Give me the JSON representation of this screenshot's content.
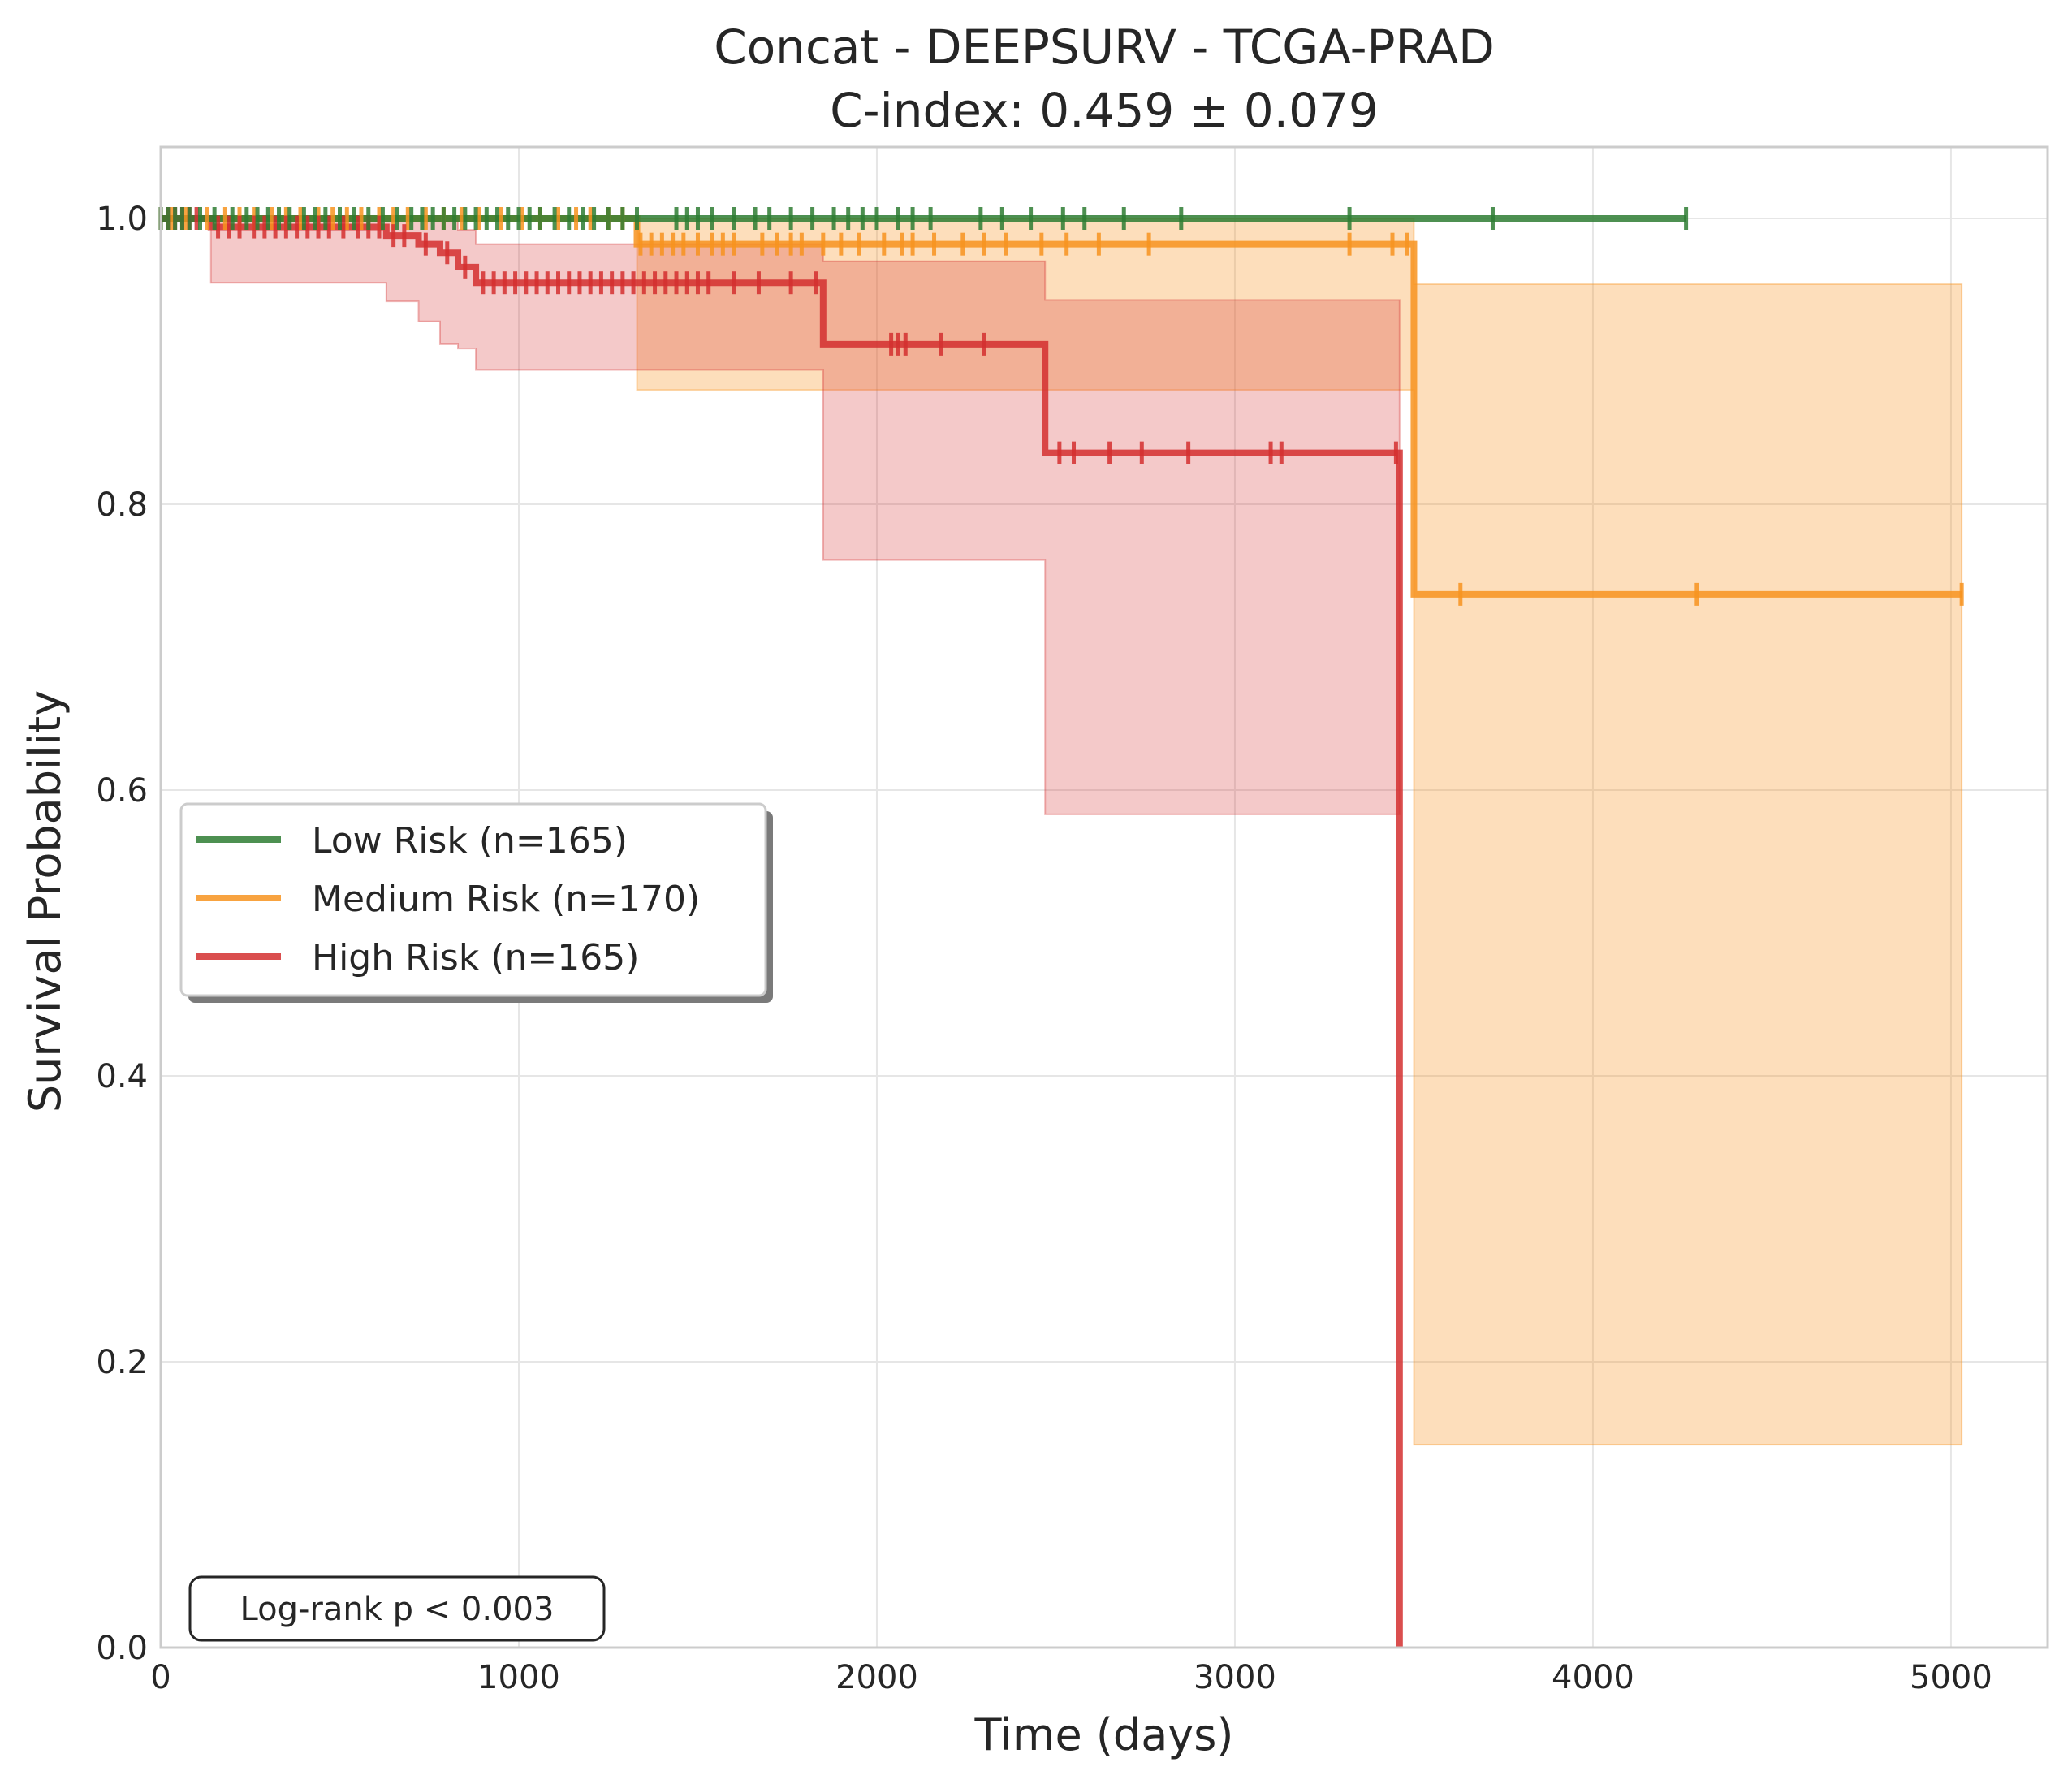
{
  "chart_data": {
    "type": "line",
    "subtype": "kaplan-meier",
    "title": "Concat - DEEPSURV - TCGA-PRAD",
    "subtitle": "C-index: 0.459 ± 0.079",
    "xlabel": "Time (days)",
    "ylabel": "Survival Probability",
    "xlim": [
      0,
      5270
    ],
    "ylim": [
      0,
      1.05
    ],
    "xticks": [
      0,
      1000,
      2000,
      3000,
      4000,
      5000
    ],
    "xtick_labels": [
      "0",
      "1000",
      "2000",
      "3000",
      "4000",
      "5000"
    ],
    "yticks": [
      0.0,
      0.2,
      0.4,
      0.6,
      0.8,
      1.0
    ],
    "ytick_labels": [
      "0.0",
      "0.2",
      "0.4",
      "0.6",
      "0.8",
      "1.0"
    ],
    "grid": true,
    "legend_position": "center-left",
    "annotation": "Log-rank p < 0.003",
    "series": [
      {
        "name": "Low Risk (n=165)",
        "color": "#2e7d32",
        "step_x": [
          0,
          4260
        ],
        "step_y": [
          1.0,
          1.0
        ],
        "ci": [],
        "censors": [
          [
            0,
            1.0
          ],
          [
            20,
            1.0
          ],
          [
            40,
            1.0
          ],
          [
            60,
            1.0
          ],
          [
            80,
            1.0
          ],
          [
            110,
            1.0
          ],
          [
            150,
            1.0
          ],
          [
            200,
            1.0
          ],
          [
            240,
            1.0
          ],
          [
            270,
            1.0
          ],
          [
            300,
            1.0
          ],
          [
            330,
            1.0
          ],
          [
            360,
            1.0
          ],
          [
            400,
            1.0
          ],
          [
            430,
            1.0
          ],
          [
            460,
            1.0
          ],
          [
            500,
            1.0
          ],
          [
            540,
            1.0
          ],
          [
            580,
            1.0
          ],
          [
            620,
            1.0
          ],
          [
            660,
            1.0
          ],
          [
            700,
            1.0
          ],
          [
            730,
            1.0
          ],
          [
            760,
            1.0
          ],
          [
            790,
            1.0
          ],
          [
            820,
            1.0
          ],
          [
            850,
            1.0
          ],
          [
            880,
            1.0
          ],
          [
            910,
            1.0
          ],
          [
            940,
            1.0
          ],
          [
            970,
            1.0
          ],
          [
            1000,
            1.0
          ],
          [
            1030,
            1.0
          ],
          [
            1060,
            1.0
          ],
          [
            1100,
            1.0
          ],
          [
            1140,
            1.0
          ],
          [
            1180,
            1.0
          ],
          [
            1210,
            1.0
          ],
          [
            1250,
            1.0
          ],
          [
            1290,
            1.0
          ],
          [
            1330,
            1.0
          ],
          [
            1440,
            1.0
          ],
          [
            1470,
            1.0
          ],
          [
            1500,
            1.0
          ],
          [
            1540,
            1.0
          ],
          [
            1600,
            1.0
          ],
          [
            1660,
            1.0
          ],
          [
            1700,
            1.0
          ],
          [
            1760,
            1.0
          ],
          [
            1820,
            1.0
          ],
          [
            1880,
            1.0
          ],
          [
            1920,
            1.0
          ],
          [
            1960,
            1.0
          ],
          [
            2000,
            1.0
          ],
          [
            2060,
            1.0
          ],
          [
            2100,
            1.0
          ],
          [
            2150,
            1.0
          ],
          [
            2290,
            1.0
          ],
          [
            2350,
            1.0
          ],
          [
            2430,
            1.0
          ],
          [
            2520,
            1.0
          ],
          [
            2580,
            1.0
          ],
          [
            2690,
            1.0
          ],
          [
            2850,
            1.0
          ],
          [
            3320,
            1.0
          ],
          [
            3720,
            1.0
          ],
          [
            4260,
            1.0
          ]
        ]
      },
      {
        "name": "Medium Risk (n=170)",
        "color": "#f7931e",
        "step_x": [
          0,
          1330,
          3500,
          5030
        ],
        "step_y": [
          1.0,
          0.982,
          0.737,
          0.737
        ],
        "ci": [
          [
            0,
            1.0,
            1.0
          ],
          [
            1330,
            0.88,
            1.0
          ],
          [
            3500,
            0.142,
            0.954
          ],
          [
            5030,
            0.142,
            0.954
          ]
        ],
        "censors": [
          [
            0,
            1.0
          ],
          [
            30,
            1.0
          ],
          [
            70,
            1.0
          ],
          [
            130,
            1.0
          ],
          [
            180,
            1.0
          ],
          [
            220,
            1.0
          ],
          [
            260,
            1.0
          ],
          [
            310,
            1.0
          ],
          [
            350,
            1.0
          ],
          [
            390,
            1.0
          ],
          [
            440,
            1.0
          ],
          [
            480,
            1.0
          ],
          [
            520,
            1.0
          ],
          [
            560,
            1.0
          ],
          [
            610,
            1.0
          ],
          [
            650,
            1.0
          ],
          [
            690,
            1.0
          ],
          [
            740,
            1.0
          ],
          [
            790,
            1.0
          ],
          [
            840,
            1.0
          ],
          [
            890,
            1.0
          ],
          [
            950,
            1.0
          ],
          [
            1010,
            1.0
          ],
          [
            1060,
            1.0
          ],
          [
            1110,
            1.0
          ],
          [
            1160,
            1.0
          ],
          [
            1200,
            1.0
          ],
          [
            1250,
            1.0
          ],
          [
            1290,
            1.0
          ],
          [
            1340,
            0.982
          ],
          [
            1370,
            0.982
          ],
          [
            1400,
            0.982
          ],
          [
            1430,
            0.982
          ],
          [
            1460,
            0.982
          ],
          [
            1500,
            0.982
          ],
          [
            1540,
            0.982
          ],
          [
            1570,
            0.982
          ],
          [
            1600,
            0.982
          ],
          [
            1680,
            0.982
          ],
          [
            1720,
            0.982
          ],
          [
            1760,
            0.982
          ],
          [
            1790,
            0.982
          ],
          [
            1850,
            0.982
          ],
          [
            1900,
            0.982
          ],
          [
            1950,
            0.982
          ],
          [
            2020,
            0.982
          ],
          [
            2070,
            0.982
          ],
          [
            2100,
            0.982
          ],
          [
            2160,
            0.982
          ],
          [
            2240,
            0.982
          ],
          [
            2300,
            0.982
          ],
          [
            2360,
            0.982
          ],
          [
            2460,
            0.982
          ],
          [
            2530,
            0.982
          ],
          [
            2620,
            0.982
          ],
          [
            2760,
            0.982
          ],
          [
            3320,
            0.982
          ],
          [
            3440,
            0.982
          ],
          [
            3480,
            0.982
          ],
          [
            3630,
            0.737
          ],
          [
            4290,
            0.737
          ],
          [
            5030,
            0.737
          ]
        ]
      },
      {
        "name": "High Risk (n=165)",
        "color": "#d32f2f",
        "step_x": [
          0,
          140,
          630,
          720,
          780,
          830,
          880,
          1850,
          2470,
          3460,
          3460
        ],
        "step_y": [
          1.0,
          0.994,
          0.988,
          0.982,
          0.976,
          0.966,
          0.955,
          0.912,
          0.836,
          0.836,
          0.0
        ],
        "ci": [
          [
            0,
            1.0,
            1.0
          ],
          [
            140,
            0.955,
            1.0
          ],
          [
            630,
            0.942,
            1.0
          ],
          [
            720,
            0.928,
            1.0
          ],
          [
            780,
            0.912,
            1.0
          ],
          [
            830,
            0.909,
            0.992
          ],
          [
            880,
            0.894,
            0.982
          ],
          [
            1850,
            0.761,
            0.97
          ],
          [
            2470,
            0.583,
            0.943
          ],
          [
            3460,
            0.583,
            0.943
          ]
        ],
        "censors": [
          [
            0,
            1.0
          ],
          [
            20,
            1.0
          ],
          [
            40,
            1.0
          ],
          [
            60,
            1.0
          ],
          [
            80,
            1.0
          ],
          [
            100,
            1.0
          ],
          [
            160,
            0.994
          ],
          [
            190,
            0.994
          ],
          [
            220,
            0.994
          ],
          [
            260,
            0.994
          ],
          [
            290,
            0.994
          ],
          [
            320,
            0.994
          ],
          [
            350,
            0.994
          ],
          [
            380,
            0.994
          ],
          [
            410,
            0.994
          ],
          [
            440,
            0.994
          ],
          [
            470,
            0.994
          ],
          [
            510,
            0.994
          ],
          [
            550,
            0.994
          ],
          [
            580,
            0.994
          ],
          [
            610,
            0.994
          ],
          [
            650,
            0.988
          ],
          [
            680,
            0.988
          ],
          [
            740,
            0.982
          ],
          [
            800,
            0.976
          ],
          [
            850,
            0.966
          ],
          [
            900,
            0.955
          ],
          [
            930,
            0.955
          ],
          [
            960,
            0.955
          ],
          [
            990,
            0.955
          ],
          [
            1020,
            0.955
          ],
          [
            1050,
            0.955
          ],
          [
            1080,
            0.955
          ],
          [
            1110,
            0.955
          ],
          [
            1140,
            0.955
          ],
          [
            1170,
            0.955
          ],
          [
            1200,
            0.955
          ],
          [
            1230,
            0.955
          ],
          [
            1260,
            0.955
          ],
          [
            1290,
            0.955
          ],
          [
            1320,
            0.955
          ],
          [
            1350,
            0.955
          ],
          [
            1380,
            0.955
          ],
          [
            1410,
            0.955
          ],
          [
            1440,
            0.955
          ],
          [
            1470,
            0.955
          ],
          [
            1500,
            0.955
          ],
          [
            1530,
            0.955
          ],
          [
            1600,
            0.955
          ],
          [
            1670,
            0.955
          ],
          [
            1760,
            0.955
          ],
          [
            1830,
            0.955
          ],
          [
            2040,
            0.912
          ],
          [
            2060,
            0.912
          ],
          [
            2080,
            0.912
          ],
          [
            2180,
            0.912
          ],
          [
            2300,
            0.912
          ],
          [
            2510,
            0.836
          ],
          [
            2550,
            0.836
          ],
          [
            2650,
            0.836
          ],
          [
            2740,
            0.836
          ],
          [
            2870,
            0.836
          ],
          [
            3100,
            0.836
          ],
          [
            3130,
            0.836
          ],
          [
            3450,
            0.836
          ]
        ]
      }
    ]
  }
}
